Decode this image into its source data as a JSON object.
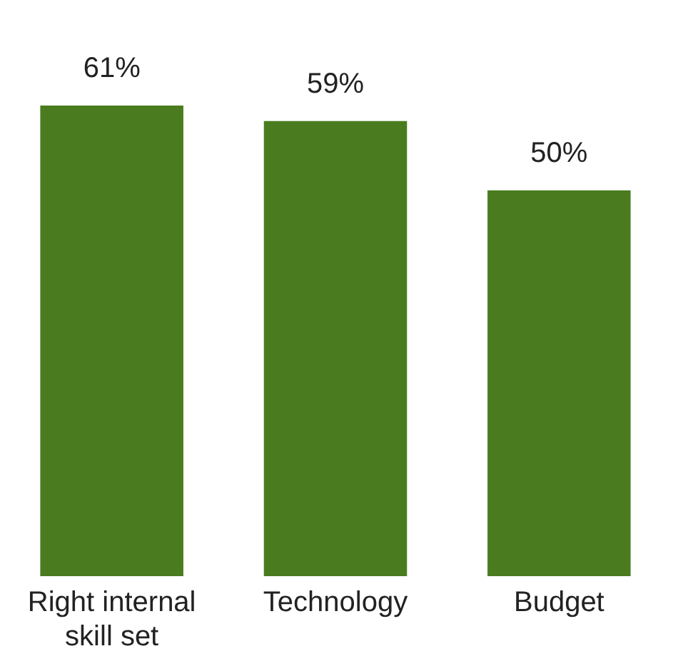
{
  "chart_data": {
    "type": "bar",
    "categories": [
      "Right internal skill set",
      "Technology",
      "Budget"
    ],
    "values": [
      61,
      59,
      50
    ],
    "color": "#4a7c1f",
    "value_labels": [
      "61%",
      "59%",
      "50%"
    ]
  }
}
